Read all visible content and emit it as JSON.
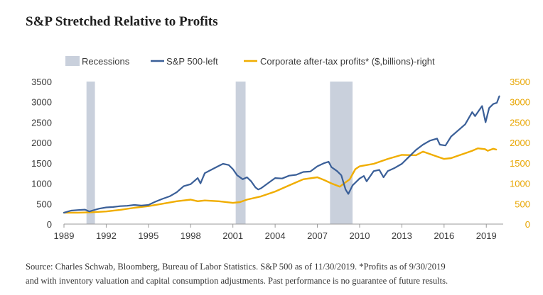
{
  "title": "S&P Stretched Relative to Profits",
  "source": {
    "line1": "Source: Charles Schwab, Bloomberg, Bureau of Labor Statistics. S&P 500 as of 11/30/2019. *Profits as of 9/30/2019",
    "line2": "and with inventory valuation and capital consumption adjustments. Past performance is no guarantee of future results."
  },
  "colors": {
    "sp500": "#3a5f98",
    "profits": "#f0ad00",
    "recession": "#c9d0dc",
    "axis": "#9a9a9a",
    "right_ticks": "#e8a500"
  },
  "chart_data": {
    "type": "line",
    "legend": {
      "position": "top",
      "items": [
        {
          "key": "recessions",
          "label": "Recessions",
          "kind": "band"
        },
        {
          "key": "sp500",
          "label": "S&P 500-left",
          "kind": "line"
        },
        {
          "key": "profits",
          "label": "Corporate after-tax profits* ($,billions)-right",
          "kind": "line"
        }
      ]
    },
    "x_ticks": [
      "1989",
      "1992",
      "1995",
      "1998",
      "2001",
      "2004",
      "2007",
      "2010",
      "2013",
      "2016",
      "2019"
    ],
    "x_range": [
      1989,
      2020.2
    ],
    "y_left": {
      "range": [
        0,
        3500
      ],
      "ticks": [
        "0",
        "500",
        "1000",
        "1500",
        "2000",
        "2500",
        "3000",
        "3500"
      ]
    },
    "y_right": {
      "range": [
        0,
        3500
      ],
      "ticks": [
        "0",
        "500",
        "1000",
        "1500",
        "2000",
        "2500",
        "3000",
        "3500"
      ]
    },
    "grid": false,
    "recessions": [
      [
        1990.6,
        1991.2
      ],
      [
        2001.2,
        2001.9
      ],
      [
        2007.9,
        2009.5
      ]
    ],
    "series": [
      {
        "name": "S&P 500-left",
        "axis": "left",
        "points": [
          [
            1989.0,
            280
          ],
          [
            1989.5,
            330
          ],
          [
            1990.0,
            345
          ],
          [
            1990.5,
            355
          ],
          [
            1990.8,
            310
          ],
          [
            1991.0,
            330
          ],
          [
            1991.5,
            380
          ],
          [
            1992.0,
            410
          ],
          [
            1992.5,
            420
          ],
          [
            1993.0,
            440
          ],
          [
            1993.5,
            450
          ],
          [
            1994.0,
            470
          ],
          [
            1994.5,
            455
          ],
          [
            1995.0,
            470
          ],
          [
            1995.5,
            550
          ],
          [
            1996.0,
            620
          ],
          [
            1996.5,
            680
          ],
          [
            1997.0,
            780
          ],
          [
            1997.5,
            930
          ],
          [
            1998.0,
            980
          ],
          [
            1998.5,
            1130
          ],
          [
            1998.7,
            1000
          ],
          [
            1999.0,
            1250
          ],
          [
            1999.5,
            1340
          ],
          [
            2000.0,
            1430
          ],
          [
            2000.3,
            1480
          ],
          [
            2000.7,
            1450
          ],
          [
            2001.0,
            1350
          ],
          [
            2001.3,
            1200
          ],
          [
            2001.7,
            1100
          ],
          [
            2002.0,
            1150
          ],
          [
            2002.3,
            1050
          ],
          [
            2002.6,
            900
          ],
          [
            2002.8,
            850
          ],
          [
            2003.0,
            880
          ],
          [
            2003.4,
            980
          ],
          [
            2004.0,
            1130
          ],
          [
            2004.5,
            1120
          ],
          [
            2005.0,
            1190
          ],
          [
            2005.5,
            1210
          ],
          [
            2006.0,
            1280
          ],
          [
            2006.5,
            1290
          ],
          [
            2007.0,
            1420
          ],
          [
            2007.5,
            1500
          ],
          [
            2007.8,
            1530
          ],
          [
            2008.0,
            1400
          ],
          [
            2008.4,
            1300
          ],
          [
            2008.7,
            1200
          ],
          [
            2009.0,
            850
          ],
          [
            2009.2,
            740
          ],
          [
            2009.5,
            950
          ],
          [
            2010.0,
            1120
          ],
          [
            2010.3,
            1180
          ],
          [
            2010.5,
            1050
          ],
          [
            2011.0,
            1300
          ],
          [
            2011.4,
            1330
          ],
          [
            2011.7,
            1150
          ],
          [
            2012.0,
            1300
          ],
          [
            2012.5,
            1380
          ],
          [
            2013.0,
            1480
          ],
          [
            2013.5,
            1650
          ],
          [
            2014.0,
            1820
          ],
          [
            2014.5,
            1950
          ],
          [
            2015.0,
            2050
          ],
          [
            2015.5,
            2100
          ],
          [
            2015.7,
            1950
          ],
          [
            2016.1,
            1930
          ],
          [
            2016.5,
            2150
          ],
          [
            2017.0,
            2300
          ],
          [
            2017.5,
            2450
          ],
          [
            2018.0,
            2750
          ],
          [
            2018.2,
            2650
          ],
          [
            2018.7,
            2900
          ],
          [
            2018.95,
            2500
          ],
          [
            2019.2,
            2850
          ],
          [
            2019.5,
            2950
          ],
          [
            2019.75,
            2980
          ],
          [
            2019.92,
            3140
          ]
        ]
      },
      {
        "name": "Corporate after-tax profits* ($,billions)-right",
        "axis": "right",
        "points": [
          [
            1989.0,
            280
          ],
          [
            1990.0,
            280
          ],
          [
            1991.0,
            290
          ],
          [
            1992.0,
            310
          ],
          [
            1993.0,
            350
          ],
          [
            1994.0,
            400
          ],
          [
            1995.0,
            440
          ],
          [
            1996.0,
            500
          ],
          [
            1997.0,
            560
          ],
          [
            1998.0,
            600
          ],
          [
            1998.5,
            560
          ],
          [
            1999.0,
            580
          ],
          [
            2000.0,
            560
          ],
          [
            2001.0,
            520
          ],
          [
            2001.5,
            540
          ],
          [
            2002.0,
            600
          ],
          [
            2003.0,
            680
          ],
          [
            2004.0,
            800
          ],
          [
            2005.0,
            950
          ],
          [
            2006.0,
            1100
          ],
          [
            2007.0,
            1150
          ],
          [
            2007.5,
            1080
          ],
          [
            2008.0,
            1000
          ],
          [
            2008.6,
            920
          ],
          [
            2008.9,
            1000
          ],
          [
            2009.3,
            1100
          ],
          [
            2009.7,
            1350
          ],
          [
            2010.0,
            1420
          ],
          [
            2011.0,
            1480
          ],
          [
            2012.0,
            1600
          ],
          [
            2013.0,
            1700
          ],
          [
            2014.0,
            1690
          ],
          [
            2014.5,
            1780
          ],
          [
            2015.0,
            1720
          ],
          [
            2015.5,
            1660
          ],
          [
            2016.0,
            1600
          ],
          [
            2016.5,
            1620
          ],
          [
            2017.0,
            1680
          ],
          [
            2017.5,
            1740
          ],
          [
            2018.0,
            1800
          ],
          [
            2018.4,
            1860
          ],
          [
            2018.9,
            1840
          ],
          [
            2019.1,
            1800
          ],
          [
            2019.5,
            1850
          ],
          [
            2019.7,
            1830
          ]
        ]
      }
    ]
  }
}
